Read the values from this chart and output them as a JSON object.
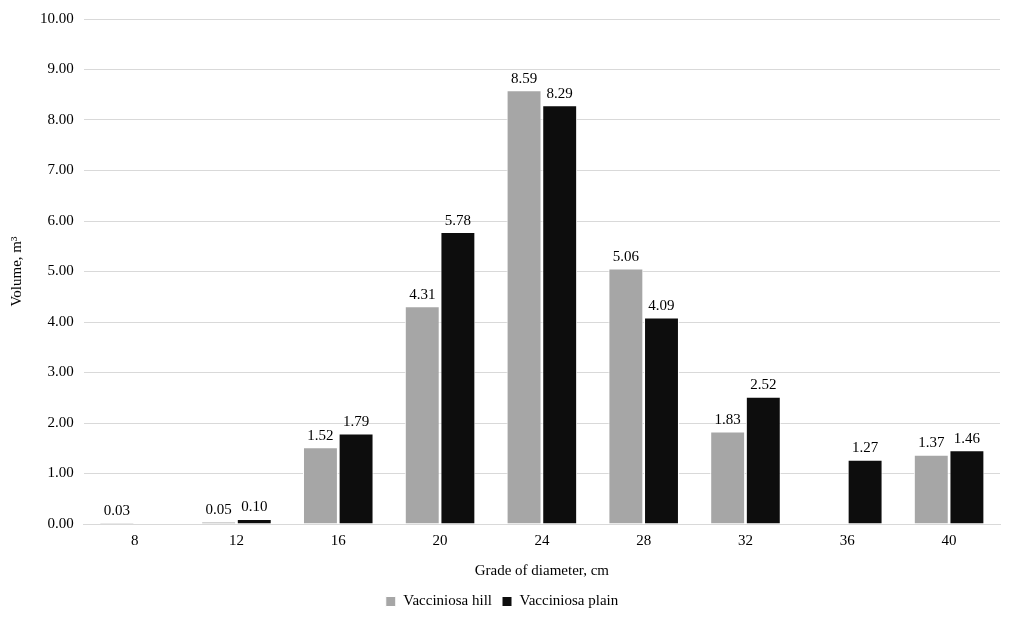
{
  "chart_data": {
    "type": "bar",
    "xlabel": "Grade of diameter, cm",
    "ylabel": "Volume, m³",
    "categories": [
      "8",
      "12",
      "16",
      "20",
      "24",
      "28",
      "32",
      "36",
      "40"
    ],
    "series": [
      {
        "name": "Vacciniosa hill",
        "color": "#a6a6a6",
        "values": [
          0.03,
          0.05,
          1.52,
          4.31,
          8.59,
          5.06,
          1.83,
          null,
          1.37
        ],
        "value_labels": [
          "0.03",
          "0.05",
          "1.52",
          "4.31",
          "8.59",
          "5.06",
          "1.83",
          null,
          "1.37"
        ]
      },
      {
        "name": "Vacciniosa plain",
        "color": "#0d0d0d",
        "values": [
          null,
          0.1,
          1.79,
          5.78,
          8.29,
          4.09,
          2.52,
          1.27,
          1.46
        ],
        "value_labels": [
          null,
          "0.10",
          "1.79",
          "5.78",
          "8.29",
          "4.09",
          "2.52",
          "1.27",
          "1.46"
        ]
      }
    ],
    "ylim": [
      0,
      10
    ],
    "yticks": [
      {
        "value": 0,
        "label": "0.00"
      },
      {
        "value": 1,
        "label": "1.00"
      },
      {
        "value": 2,
        "label": "2.00"
      },
      {
        "value": 3,
        "label": "3.00"
      },
      {
        "value": 4,
        "label": "4.00"
      },
      {
        "value": 5,
        "label": "5.00"
      },
      {
        "value": 6,
        "label": "6.00"
      },
      {
        "value": 7,
        "label": "7.00"
      },
      {
        "value": 8,
        "label": "8.00"
      },
      {
        "value": 9,
        "label": "9.00"
      },
      {
        "value": 10,
        "label": "10.00"
      }
    ],
    "grid": "y",
    "legend": "bottom"
  }
}
